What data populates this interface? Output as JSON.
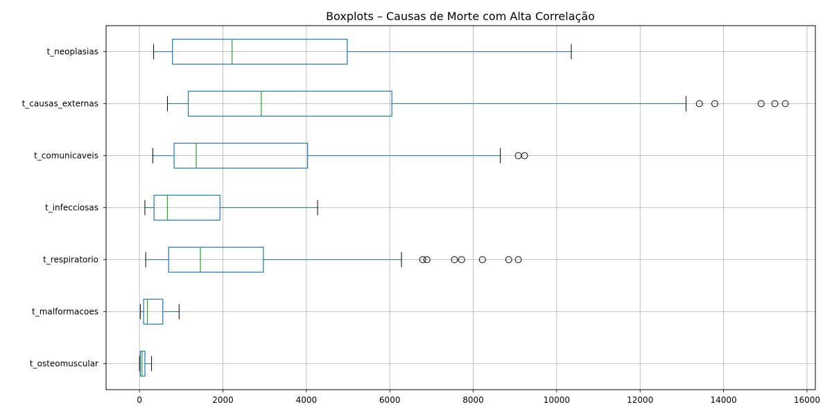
{
  "chart_data": {
    "type": "boxplot",
    "orientation": "horizontal",
    "title": "Boxplots – Causas de Morte com Alta Correlação",
    "xlabel": "",
    "ylabel": "",
    "xlim": [
      -800,
      16200
    ],
    "xticks": [
      0,
      2000,
      4000,
      6000,
      8000,
      10000,
      12000,
      14000,
      16000
    ],
    "grid": true,
    "colors": {
      "box": "#1f77b4",
      "median": "#2ca02c",
      "whisker": "#1f77b4",
      "cap": "#000000",
      "flier": "#000000",
      "grid": "#b0b0b0"
    },
    "series": [
      {
        "name": "t_neoplasias",
        "whislo": 340,
        "q1": 790,
        "med": 2220,
        "q3": 4980,
        "whishi": 10350,
        "fliers": []
      },
      {
        "name": "t_causas_externas",
        "whislo": 670,
        "q1": 1170,
        "med": 2920,
        "q3": 6050,
        "whishi": 13100,
        "fliers": [
          13420,
          13790,
          14900,
          15230,
          15480
        ]
      },
      {
        "name": "t_comunicaveis",
        "whislo": 320,
        "q1": 830,
        "med": 1360,
        "q3": 4030,
        "whishi": 8650,
        "fliers": [
          9080,
          9230
        ]
      },
      {
        "name": "t_infecciosas",
        "whislo": 130,
        "q1": 350,
        "med": 670,
        "q3": 1930,
        "whishi": 4270,
        "fliers": []
      },
      {
        "name": "t_respiratorio",
        "whislo": 150,
        "q1": 700,
        "med": 1460,
        "q3": 2970,
        "whishi": 6280,
        "fliers": [
          6790,
          6890,
          7550,
          7720,
          8220,
          8850,
          9080
        ]
      },
      {
        "name": "t_malformacoes",
        "whislo": 20,
        "q1": 100,
        "med": 190,
        "q3": 560,
        "whishi": 950,
        "fliers": []
      },
      {
        "name": "t_osteomuscular",
        "whislo": 0,
        "q1": 20,
        "med": 60,
        "q3": 130,
        "whishi": 290,
        "fliers": []
      }
    ]
  }
}
